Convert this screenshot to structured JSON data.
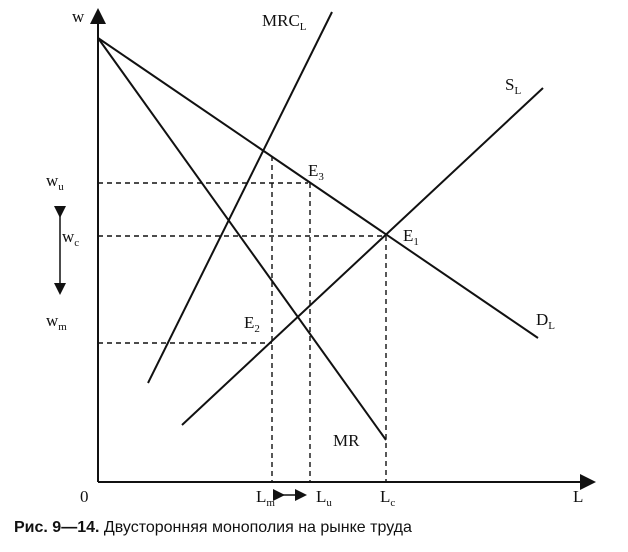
{
  "diagram": {
    "axes": {
      "y": "w",
      "x": "L",
      "origin": "0"
    },
    "curves": [
      {
        "main": "MRC",
        "sub": "L"
      },
      {
        "main": "S",
        "sub": "L"
      },
      {
        "main": "D",
        "sub": "L"
      },
      {
        "main": "MR"
      }
    ],
    "points": [
      "E",
      "3",
      "E",
      "1",
      "E",
      "2"
    ],
    "wage_levels": [
      {
        "main": "w",
        "sub": "u"
      },
      {
        "main": "w",
        "sub": "c"
      },
      {
        "main": "w",
        "sub": "m"
      }
    ],
    "employment_levels": [
      {
        "main": "L",
        "sub": "m"
      },
      {
        "main": "L",
        "sub": "u"
      },
      {
        "main": "L",
        "sub": "c"
      }
    ]
  },
  "caption": {
    "label": "Рис. 9—14.",
    "text": "Двусторонняя монополия на рынке труда"
  }
}
